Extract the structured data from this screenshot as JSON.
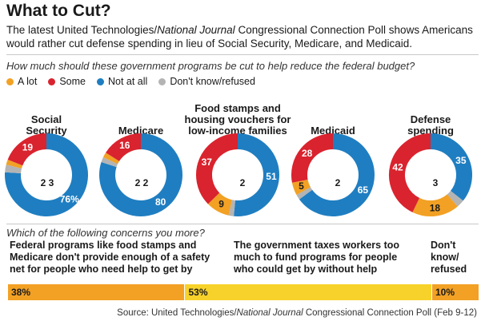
{
  "header": {
    "title": "What to Cut?",
    "subtitle_pre": "The latest United Technologies/",
    "subtitle_italic": "National Journal",
    "subtitle_post": " Congressional Connection Poll shows Americans would rather cut defense spending in lieu of Social Security, Medicare, and Medicaid."
  },
  "question1": "How much should these government programs be cut to help reduce the federal budget?",
  "legend": [
    {
      "label": "A lot",
      "color": "#f2a124"
    },
    {
      "label": "Some",
      "color": "#d9232e"
    },
    {
      "label": "Not at all",
      "color": "#1f7ec1"
    },
    {
      "label": "Don't know/refused",
      "color": "#b4b4b4"
    }
  ],
  "chart_data": [
    {
      "type": "pie",
      "title": "How much should these government programs be cut to help reduce the federal budget?",
      "categories": [
        "A lot",
        "Some",
        "Not at all",
        "Don't know/refused"
      ],
      "series": [
        {
          "name": "Social Security",
          "values": [
            2,
            19,
            76,
            3
          ],
          "labels": [
            "2",
            "19",
            "76%",
            "3"
          ]
        },
        {
          "name": "Medicare",
          "values": [
            2,
            16,
            80,
            2
          ],
          "labels": [
            "2",
            "16",
            "80",
            "2"
          ]
        },
        {
          "name": "Food stamps and housing vouchers for low-income families",
          "values": [
            9,
            37,
            51,
            2
          ],
          "labels": [
            "9",
            "37",
            "51",
            "2"
          ]
        },
        {
          "name": "Medicaid",
          "values": [
            5,
            28,
            65,
            2
          ],
          "labels": [
            "5",
            "28",
            "65",
            "2"
          ]
        },
        {
          "name": "Defense spending",
          "values": [
            18,
            42,
            35,
            3
          ],
          "labels": [
            "18",
            "42",
            "35",
            "3"
          ]
        }
      ]
    },
    {
      "type": "bar",
      "title": "Which of the following concerns you more?",
      "categories": [
        "Federal programs like food stamps and Medicare don't provide enough of a safety net for people who need help to get by",
        "The government taxes workers too much to fund programs for people who could get by without help",
        "Don't know/ refused"
      ],
      "values": [
        38,
        53,
        10
      ],
      "labels": [
        "38%",
        "53%",
        "10%"
      ],
      "colors": [
        "#f2a124",
        "#f7d22a",
        "#f2a124"
      ]
    }
  ],
  "donut_titles": [
    [
      "Social",
      "Security"
    ],
    [
      "Medicare"
    ],
    [
      "Food stamps and",
      "housing vouchers for",
      "low-income families"
    ],
    [
      "Medicaid"
    ],
    [
      "Defense",
      "spending"
    ]
  ],
  "question2": "Which of the following concerns you more?",
  "bar_label_lines": [
    [
      "Federal programs like food stamps and",
      "Medicare don't provide enough of a safety",
      "net for people who need help to get by"
    ],
    [
      "The government taxes workers too",
      "much to fund programs for people",
      "who could get by without help"
    ],
    [
      "Don't",
      "know/",
      "refused"
    ]
  ],
  "source": {
    "pre": "Source: United Technologies/",
    "italic": "National Journal",
    "post": " Congressional Connection Poll (Feb 9-12)"
  }
}
